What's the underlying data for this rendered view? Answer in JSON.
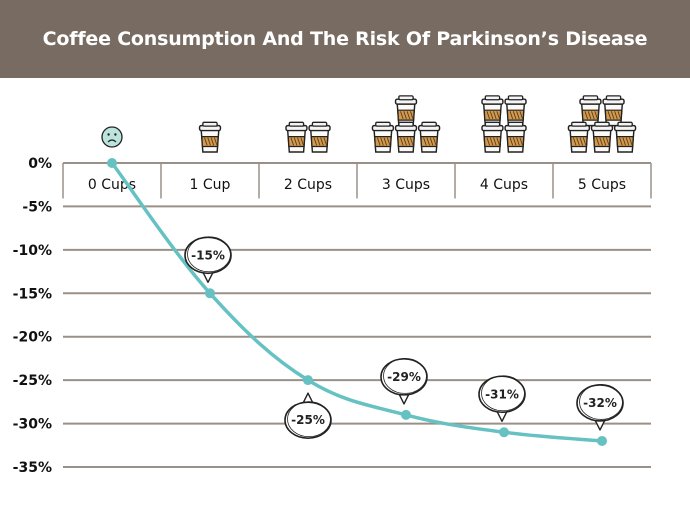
{
  "title": "Coffee Consumption And The Risk Of Parkinson’s Disease",
  "colors": {
    "header_bg": "#786b62",
    "line": "#66c2c2",
    "grid": "#9a9088",
    "cup_sleeve": "#d29a4f",
    "cup_lid": "#f4f4f4"
  },
  "icons": [
    "sad-face-icon",
    "coffee-cup-icon"
  ],
  "chart_data": {
    "type": "line",
    "categories": [
      "0 Cups",
      "1 Cup",
      "2 Cups",
      "3 Cups",
      "4 Cups",
      "5 Cups"
    ],
    "cups": [
      0,
      1,
      2,
      3,
      4,
      5
    ],
    "values": [
      0,
      -15,
      -25,
      -29,
      -31,
      -32
    ],
    "data_labels": [
      "",
      "-15%",
      "-25%",
      "-29%",
      "-31%",
      "-32%"
    ],
    "label_position": [
      "none",
      "above",
      "below",
      "above",
      "above",
      "above"
    ],
    "ylim": [
      -35,
      0
    ],
    "yticks": [
      0,
      -5,
      -10,
      -15,
      -20,
      -25,
      -30,
      -35
    ],
    "ytick_labels": [
      "0%",
      "-5%",
      "-10%",
      "-15%",
      "-20%",
      "-25%",
      "-30%",
      "-35%"
    ],
    "grid": true,
    "x_axis_position": "top"
  }
}
